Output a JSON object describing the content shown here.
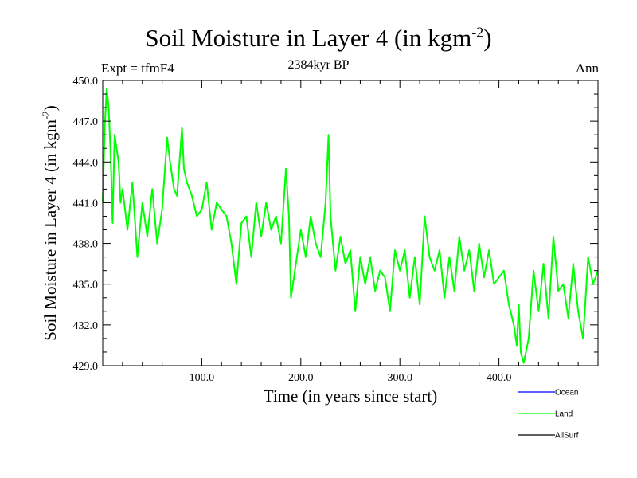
{
  "chart_data": {
    "type": "line",
    "title": "Soil Moisture in Layer 4 (in kgm",
    "title_sup": "-2",
    "title_suffix": ")",
    "subtitle": "2384kyr BP",
    "left_label": "Expt = tfmF4",
    "right_label": "Ann",
    "xlabel": "Time (in years since start)",
    "ylabel": "Soil Moisture in Layer 4 (in kgm",
    "ylabel_sup": "-2",
    "ylabel_suffix": ")",
    "xlim": [
      0,
      500
    ],
    "ylim": [
      429.0,
      450.0
    ],
    "xticks": [
      100,
      200,
      300,
      400
    ],
    "xtick_labels": [
      "100.0",
      "200.0",
      "300.0",
      "400.0"
    ],
    "yticks": [
      429,
      432,
      435,
      438,
      441,
      444,
      447,
      450
    ],
    "ytick_labels": [
      "429.0",
      "432.0",
      "435.0",
      "438.0",
      "441.0",
      "444.0",
      "447.0",
      "450.0"
    ],
    "legend": [
      {
        "name": "Ocean",
        "color": "#0000ff"
      },
      {
        "name": "Land",
        "color": "#00ff00"
      },
      {
        "name": "AllSurf",
        "color": "#000000"
      }
    ],
    "series": [
      {
        "name": "Land",
        "color": "#00ff00",
        "x": [
          0,
          2,
          4,
          6,
          8,
          10,
          12,
          14,
          16,
          18,
          20,
          25,
          30,
          35,
          40,
          45,
          50,
          55,
          60,
          65,
          68,
          72,
          75,
          80,
          82,
          85,
          90,
          95,
          100,
          105,
          110,
          115,
          120,
          125,
          130,
          135,
          140,
          145,
          150,
          155,
          160,
          165,
          170,
          175,
          180,
          185,
          188,
          190,
          195,
          200,
          205,
          210,
          215,
          220,
          225,
          228,
          230,
          235,
          240,
          245,
          250,
          255,
          260,
          265,
          270,
          275,
          280,
          285,
          290,
          295,
          300,
          305,
          310,
          315,
          320,
          325,
          330,
          335,
          340,
          345,
          350,
          355,
          360,
          365,
          370,
          375,
          380,
          385,
          390,
          395,
          400,
          405,
          410,
          415,
          418,
          420,
          422,
          425,
          430,
          435,
          440,
          445,
          450,
          455,
          460,
          465,
          470,
          475,
          480,
          485,
          490,
          495,
          500
        ],
        "values": [
          441.0,
          446.5,
          449.4,
          448.0,
          444.5,
          439.5,
          446.0,
          445.0,
          444.0,
          441.0,
          442.0,
          439.0,
          442.5,
          437.0,
          441.0,
          438.5,
          442.0,
          438.0,
          440.5,
          445.8,
          444.0,
          442.0,
          441.5,
          446.5,
          443.5,
          442.5,
          441.5,
          440.0,
          440.5,
          442.5,
          439.0,
          441.0,
          440.5,
          440.0,
          438.0,
          435.0,
          439.5,
          440.0,
          437.0,
          441.0,
          438.5,
          441.0,
          439.0,
          440.0,
          438.0,
          443.5,
          440.0,
          434.0,
          436.5,
          439.0,
          437.0,
          440.0,
          438.0,
          437.0,
          441.0,
          446.0,
          440.0,
          436.0,
          438.5,
          436.5,
          437.5,
          433.0,
          437.0,
          435.0,
          437.0,
          434.5,
          436.0,
          435.5,
          433.0,
          437.5,
          436.0,
          437.5,
          434.0,
          437.0,
          433.5,
          440.0,
          437.0,
          436.0,
          437.5,
          434.0,
          437.0,
          434.5,
          438.5,
          436.0,
          437.5,
          434.5,
          438.0,
          435.5,
          437.5,
          435.0,
          435.5,
          436.0,
          433.5,
          432.0,
          430.5,
          433.5,
          430.0,
          429.2,
          431.0,
          436.0,
          433.0,
          436.5,
          432.5,
          438.5,
          434.5,
          435.0,
          432.5,
          436.5,
          433.0,
          431.0,
          437.0,
          435.0,
          436.0
        ]
      }
    ]
  }
}
